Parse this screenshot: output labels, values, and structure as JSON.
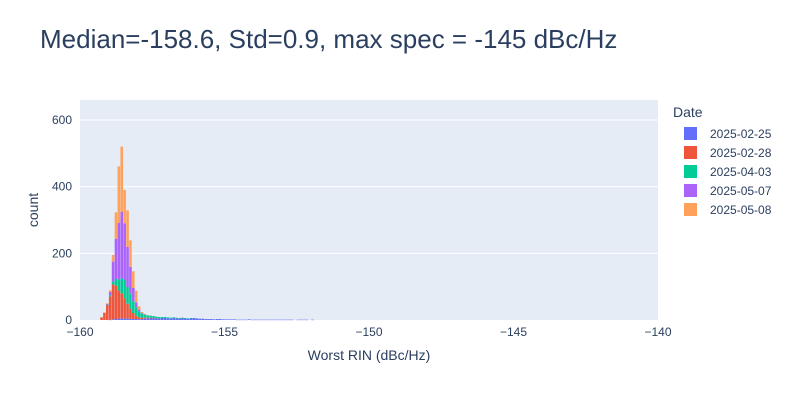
{
  "chart_data": {
    "type": "bar",
    "stacked": true,
    "title": "Median=-158.6, Std=0.9, max spec = -145 dBc/Hz",
    "xlabel": "Worst RIN (dBc/Hz)",
    "ylabel": "count",
    "xlim": [
      -160,
      -140
    ],
    "ylim": [
      0,
      660
    ],
    "xticks": [
      -160,
      -155,
      -150,
      -145,
      -140
    ],
    "xtick_labels": [
      "−160",
      "−155",
      "−150",
      "−145",
      "−140"
    ],
    "yticks": [
      0,
      200,
      400,
      600
    ],
    "ytick_labels": [
      "0",
      "200",
      "400",
      "600"
    ],
    "legend_title": "Date",
    "legend_position": "right",
    "grid": true,
    "bin_width": 0.1,
    "bin_start": -159.3,
    "series": [
      {
        "name": "2025-02-25",
        "color": "#636efa",
        "values": [
          0,
          0,
          0,
          1,
          2,
          3,
          4,
          5,
          5,
          4,
          4,
          3,
          3,
          2,
          3,
          4,
          5,
          6,
          6,
          5,
          5,
          6,
          6,
          5,
          5,
          6,
          5,
          5,
          6,
          5,
          4,
          5,
          6,
          5,
          4,
          4,
          3,
          3,
          3,
          2,
          3,
          3,
          2,
          2,
          2,
          2,
          2,
          1,
          1,
          1,
          1,
          2,
          1,
          1,
          1,
          1,
          1,
          1,
          1,
          1,
          1,
          1,
          1,
          1,
          1,
          1,
          1,
          0,
          1,
          1,
          1,
          1,
          0,
          1,
          0,
          0
        ]
      },
      {
        "name": "2025-02-28",
        "color": "#ef553b",
        "values": [
          8,
          22,
          45,
          70,
          105,
          100,
          85,
          75,
          60,
          45,
          30,
          18,
          10,
          6,
          4,
          3,
          2,
          1,
          1,
          1,
          0,
          0,
          0,
          0,
          0,
          0,
          0,
          0,
          0,
          0,
          0,
          0,
          0,
          0,
          0,
          0,
          0,
          0,
          0,
          0,
          0,
          0,
          0,
          0,
          0,
          0,
          0,
          0,
          0,
          0,
          0,
          0,
          0,
          0,
          0,
          0,
          0,
          0,
          0,
          0,
          0,
          0,
          0,
          0,
          0,
          0,
          0,
          0,
          0,
          0,
          0,
          0,
          0,
          0,
          0,
          0
        ]
      },
      {
        "name": "2025-04-03",
        "color": "#00cc96",
        "values": [
          0,
          0,
          1,
          3,
          8,
          20,
          32,
          45,
          55,
          50,
          45,
          35,
          25,
          18,
          12,
          9,
          7,
          6,
          5,
          4,
          4,
          3,
          3,
          3,
          2,
          2,
          2,
          1,
          1,
          1,
          1,
          1,
          0,
          0,
          0,
          0,
          0,
          0,
          0,
          0,
          0,
          0,
          0,
          0,
          0,
          0,
          0,
          0,
          0,
          0,
          0,
          0,
          0,
          0,
          0,
          0,
          0,
          0,
          0,
          0,
          0,
          0,
          0,
          0,
          0,
          0,
          0,
          0,
          0,
          0,
          0,
          0,
          0,
          0,
          0,
          0
        ]
      },
      {
        "name": "2025-05-07",
        "color": "#ab63fa",
        "values": [
          0,
          0,
          2,
          10,
          60,
          120,
          170,
          200,
          170,
          120,
          80,
          40,
          15,
          5,
          2,
          1,
          0,
          0,
          0,
          0,
          0,
          0,
          0,
          0,
          0,
          0,
          0,
          0,
          0,
          0,
          0,
          0,
          0,
          0,
          0,
          0,
          0,
          0,
          0,
          0,
          0,
          0,
          0,
          0,
          0,
          0,
          0,
          0,
          0,
          0,
          0,
          0,
          0,
          0,
          0,
          0,
          0,
          0,
          0,
          0,
          0,
          0,
          0,
          0,
          0,
          0,
          0,
          0,
          0,
          0,
          0,
          0,
          0,
          0,
          0,
          0
        ]
      },
      {
        "name": "2025-05-08",
        "color": "#ffa15a",
        "values": [
          0,
          0,
          2,
          5,
          20,
          80,
          170,
          195,
          100,
          110,
          80,
          50,
          35,
          10,
          3,
          1,
          0,
          1,
          0,
          0,
          0,
          0,
          0,
          0,
          0,
          0,
          0,
          0,
          0,
          0,
          0,
          0,
          0,
          0,
          0,
          0,
          0,
          0,
          0,
          0,
          0,
          0,
          0,
          0,
          0,
          0,
          0,
          0,
          0,
          0,
          0,
          0,
          0,
          0,
          0,
          0,
          0,
          0,
          0,
          0,
          0,
          0,
          0,
          0,
          0,
          0,
          0,
          0,
          0,
          0,
          0,
          0,
          0,
          0,
          0,
          0
        ]
      }
    ]
  },
  "colors": {
    "plot_background": "#e5ecf6",
    "grid": "#ffffff",
    "text": "#2a3f5f"
  }
}
